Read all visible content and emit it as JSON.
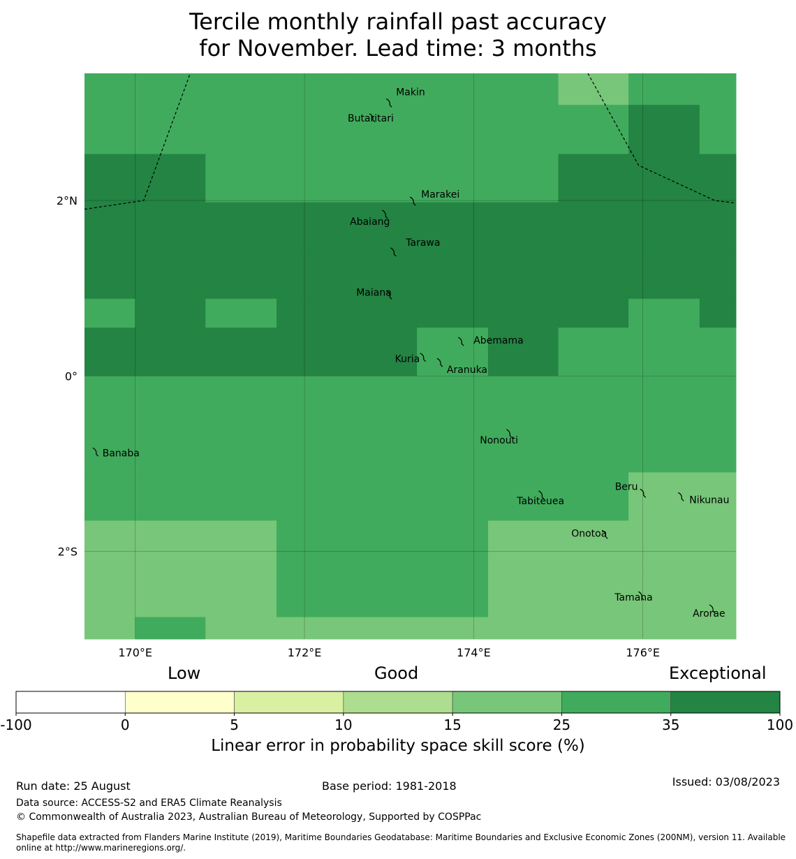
{
  "title": {
    "line1": "Tercile monthly rainfall past accuracy",
    "line2": "for November. Lead time: 3 months"
  },
  "map": {
    "lon_range": [
      169.4,
      177.1
    ],
    "lat_range": [
      -3.0,
      3.45
    ],
    "x_ticks": [
      {
        "value": 170,
        "label": "170°E"
      },
      {
        "value": 172,
        "label": "172°E"
      },
      {
        "value": 174,
        "label": "174°E"
      },
      {
        "value": 176,
        "label": "176°E"
      }
    ],
    "y_ticks": [
      {
        "value": 2,
        "label": "2°N"
      },
      {
        "value": 0,
        "label": "0°"
      },
      {
        "value": -2,
        "label": "2°S"
      }
    ],
    "colors": {
      "c25": "#78c679",
      "c35": "#41ab5d",
      "c100": "#238443"
    },
    "grid_lon_edges": [
      169.4,
      170.0,
      170.83,
      171.67,
      172.5,
      173.33,
      174.17,
      175.0,
      175.83,
      176.67,
      177.1
    ],
    "grid_lat_edges": [
      3.45,
      3.09,
      2.53,
      1.98,
      1.43,
      0.88,
      0.55,
      0.0,
      -0.55,
      -1.1,
      -1.65,
      -2.2,
      -2.75,
      -3.0
    ],
    "grid_classes": [
      [
        "c35",
        "c35",
        "c35",
        "c35",
        "c35",
        "c35",
        "c35",
        "c25",
        "c35",
        "c35"
      ],
      [
        "c35",
        "c35",
        "c35",
        "c35",
        "c35",
        "c35",
        "c35",
        "c35",
        "c100",
        "c35"
      ],
      [
        "c100",
        "c100",
        "c35",
        "c35",
        "c35",
        "c35",
        "c35",
        "c100",
        "c100",
        "c100"
      ],
      [
        "c100",
        "c100",
        "c100",
        "c100",
        "c100",
        "c100",
        "c100",
        "c100",
        "c100",
        "c100"
      ],
      [
        "c100",
        "c100",
        "c100",
        "c100",
        "c100",
        "c100",
        "c100",
        "c100",
        "c100",
        "c100"
      ],
      [
        "c35",
        "c100",
        "c35",
        "c100",
        "c100",
        "c100",
        "c100",
        "c100",
        "c35",
        "c100"
      ],
      [
        "c100",
        "c100",
        "c100",
        "c100",
        "c100",
        "c35",
        "c100",
        "c35",
        "c35",
        "c35"
      ],
      [
        "c35",
        "c35",
        "c35",
        "c35",
        "c35",
        "c35",
        "c35",
        "c35",
        "c35",
        "c35"
      ],
      [
        "c35",
        "c35",
        "c35",
        "c35",
        "c35",
        "c35",
        "c35",
        "c35",
        "c35",
        "c35"
      ],
      [
        "c35",
        "c35",
        "c35",
        "c35",
        "c35",
        "c35",
        "c35",
        "c35",
        "c25",
        "c25"
      ],
      [
        "c25",
        "c25",
        "c25",
        "c35",
        "c35",
        "c35",
        "c25",
        "c25",
        "c25",
        "c25"
      ],
      [
        "c25",
        "c25",
        "c25",
        "c35",
        "c35",
        "c35",
        "c25",
        "c25",
        "c25",
        "c25"
      ],
      [
        "c25",
        "c35",
        "c25",
        "c25",
        "c25",
        "c25",
        "c25",
        "c25",
        "c25",
        "c25"
      ]
    ],
    "islands": [
      {
        "name": "Makin",
        "lon": 173.0,
        "lat": 3.12
      },
      {
        "name": "Butaritari",
        "lon": 172.8,
        "lat": 2.95
      },
      {
        "name": "Marakei",
        "lon": 173.28,
        "lat": 2.0
      },
      {
        "name": "Abaiang",
        "lon": 172.95,
        "lat": 1.85
      },
      {
        "name": "Tarawa",
        "lon": 173.05,
        "lat": 1.42
      },
      {
        "name": "Maiana",
        "lon": 173.0,
        "lat": 0.93
      },
      {
        "name": "Abemama",
        "lon": 173.85,
        "lat": 0.4
      },
      {
        "name": "Kuria",
        "lon": 173.4,
        "lat": 0.22
      },
      {
        "name": "Aranuka",
        "lon": 173.6,
        "lat": 0.16
      },
      {
        "name": "Nonouti",
        "lon": 174.42,
        "lat": -0.65
      },
      {
        "name": "Banaba",
        "lon": 169.53,
        "lat": -0.86
      },
      {
        "name": "Tabiteuea",
        "lon": 174.8,
        "lat": -1.35
      },
      {
        "name": "Beru",
        "lon": 176.0,
        "lat": -1.33
      },
      {
        "name": "Nikunau",
        "lon": 176.45,
        "lat": -1.37
      },
      {
        "name": "Onotoa",
        "lon": 175.55,
        "lat": -1.8
      },
      {
        "name": "Tamana",
        "lon": 175.98,
        "lat": -2.5
      },
      {
        "name": "Arorae",
        "lon": 176.82,
        "lat": -2.65
      }
    ],
    "boundaries": [
      [
        [
          169.4,
          1.9
        ],
        [
          170.1,
          2.0
        ],
        [
          170.65,
          3.45
        ]
      ],
      [
        [
          175.35,
          3.45
        ],
        [
          175.95,
          2.4
        ],
        [
          176.85,
          2.0
        ],
        [
          177.1,
          1.97
        ]
      ]
    ]
  },
  "colorbar": {
    "categories": [
      {
        "label": "Low",
        "tick": 5
      },
      {
        "label": "Good",
        "tick": 15
      },
      {
        "label": "Exceptional",
        "tick": 100
      }
    ],
    "ticks": [
      "-100",
      "0",
      "5",
      "10",
      "15",
      "25",
      "35",
      "100"
    ],
    "colors": [
      "#ffffff",
      "#ffffcc",
      "#d9f0a3",
      "#addd8e",
      "#78c679",
      "#41ab5d",
      "#238443"
    ],
    "xlabel": "Linear error in probability space skill score (%)"
  },
  "footer": {
    "run_date": "Run date: 25 August",
    "base_period": "Base period: 1981-2018",
    "issued": "Issued: 03/08/2023",
    "data_source": "Data source: ACCESS-S2 and ERA5 Climate Reanalysis",
    "copyright": "© Commonwealth of Australia 2023, Australian Bureau of Meteorology, Supported by COSPPac",
    "shapefile": "Shapefile data extracted from Flanders Marine Institute (2019), Maritime Boundaries Geodatabase: Maritime Boundaries and Exclusive Economic Zones (200NM), version 11. Available online at http://www.marineregions.org/."
  }
}
